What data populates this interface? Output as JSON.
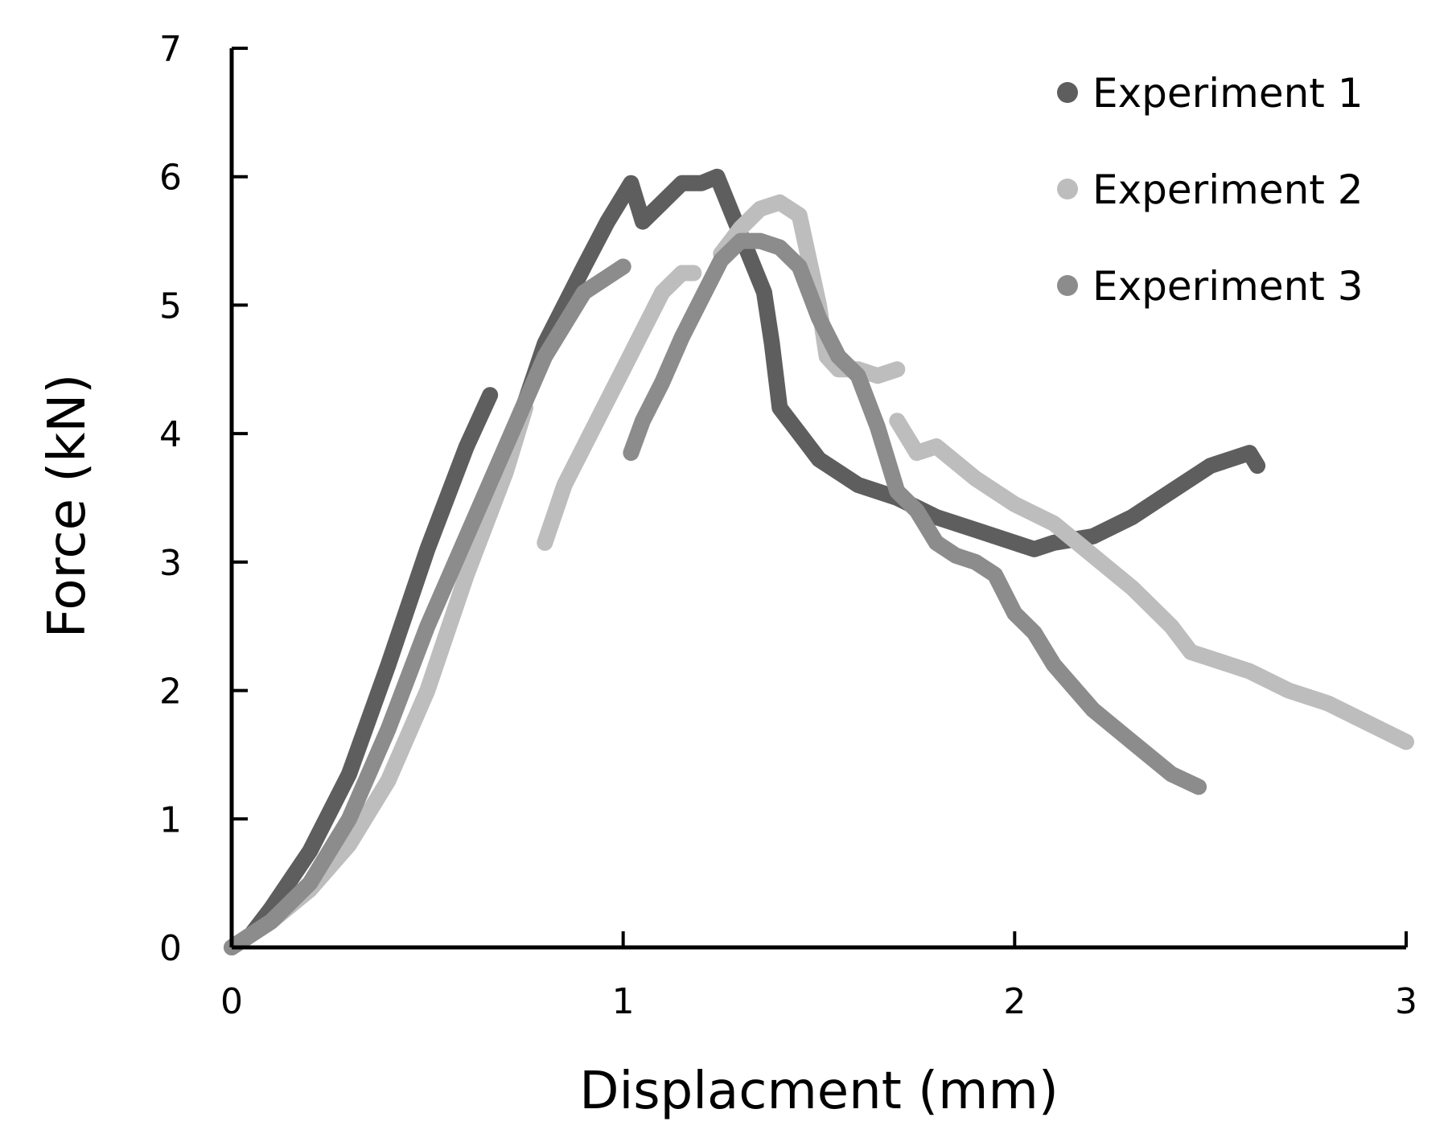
{
  "chart_data": {
    "type": "scatter",
    "title": "",
    "xlabel": "Displacment (mm)",
    "ylabel": "Force (kN)",
    "xlim": [
      0,
      3
    ],
    "ylim": [
      0,
      7
    ],
    "xticks": [
      0,
      1,
      2,
      3
    ],
    "yticks": [
      0,
      1,
      2,
      3,
      4,
      5,
      6,
      7
    ],
    "xtick_labels": [
      "0",
      "1",
      "2",
      "3"
    ],
    "ytick_labels": [
      "0",
      "1",
      "2",
      "3",
      "4",
      "5",
      "6",
      "7"
    ],
    "grid": false,
    "legend_position": "top-right",
    "series": [
      {
        "name": "Experiment 1",
        "color": "#5e5e5e",
        "segments": [
          [
            [
              0,
              0
            ],
            [
              0.05,
              0.1
            ],
            [
              0.1,
              0.3
            ],
            [
              0.2,
              0.75
            ],
            [
              0.3,
              1.35
            ],
            [
              0.4,
              2.2
            ],
            [
              0.5,
              3.1
            ],
            [
              0.6,
              3.9
            ],
            [
              0.66,
              4.3
            ]
          ],
          [
            [
              0.66,
              3.4
            ],
            [
              0.7,
              3.8
            ],
            [
              0.8,
              4.7
            ],
            [
              0.9,
              5.3
            ],
            [
              0.96,
              5.65
            ],
            [
              1.0,
              5.85
            ],
            [
              1.02,
              5.95
            ],
            [
              1.05,
              5.65
            ],
            [
              1.1,
              5.8
            ],
            [
              1.15,
              5.95
            ],
            [
              1.2,
              5.95
            ],
            [
              1.24,
              6.0
            ],
            [
              1.28,
              5.7
            ],
            [
              1.32,
              5.4
            ],
            [
              1.36,
              5.1
            ],
            [
              1.38,
              4.7
            ],
            [
              1.4,
              4.2
            ],
            [
              1.45,
              4.0
            ],
            [
              1.5,
              3.8
            ],
            [
              1.6,
              3.6
            ],
            [
              1.7,
              3.5
            ],
            [
              1.8,
              3.35
            ],
            [
              1.9,
              3.25
            ],
            [
              2.0,
              3.15
            ],
            [
              2.05,
              3.1
            ],
            [
              2.1,
              3.15
            ],
            [
              2.2,
              3.2
            ],
            [
              2.3,
              3.35
            ],
            [
              2.4,
              3.55
            ],
            [
              2.5,
              3.75
            ],
            [
              2.6,
              3.85
            ],
            [
              2.62,
              3.75
            ]
          ]
        ]
      },
      {
        "name": "Experiment 2",
        "color": "#bdbdbd",
        "segments": [
          [
            [
              0,
              0
            ],
            [
              0.1,
              0.2
            ],
            [
              0.2,
              0.45
            ],
            [
              0.3,
              0.8
            ],
            [
              0.4,
              1.3
            ],
            [
              0.5,
              2.0
            ],
            [
              0.6,
              2.9
            ],
            [
              0.7,
              3.7
            ],
            [
              0.75,
              4.2
            ]
          ],
          [
            [
              0.8,
              3.15
            ],
            [
              0.85,
              3.6
            ],
            [
              0.9,
              3.9
            ],
            [
              0.95,
              4.2
            ],
            [
              1.0,
              4.5
            ],
            [
              1.05,
              4.8
            ],
            [
              1.1,
              5.1
            ],
            [
              1.15,
              5.25
            ],
            [
              1.18,
              5.25
            ]
          ],
          [
            [
              1.25,
              5.4
            ],
            [
              1.3,
              5.6
            ],
            [
              1.35,
              5.75
            ],
            [
              1.4,
              5.8
            ],
            [
              1.45,
              5.7
            ],
            [
              1.5,
              5.0
            ],
            [
              1.52,
              4.6
            ],
            [
              1.55,
              4.5
            ],
            [
              1.6,
              4.5
            ],
            [
              1.65,
              4.45
            ],
            [
              1.7,
              4.5
            ]
          ],
          [
            [
              1.7,
              4.1
            ],
            [
              1.75,
              3.85
            ],
            [
              1.8,
              3.9
            ],
            [
              1.9,
              3.65
            ],
            [
              2.0,
              3.45
            ],
            [
              2.1,
              3.3
            ],
            [
              2.2,
              3.05
            ],
            [
              2.3,
              2.8
            ],
            [
              2.4,
              2.5
            ],
            [
              2.45,
              2.3
            ],
            [
              2.6,
              2.15
            ],
            [
              2.7,
              2.0
            ],
            [
              2.8,
              1.9
            ],
            [
              2.9,
              1.75
            ],
            [
              3.0,
              1.6
            ]
          ]
        ]
      },
      {
        "name": "Experiment 3",
        "color": "#8c8c8c",
        "segments": [
          [
            [
              0,
              0
            ],
            [
              0.1,
              0.2
            ],
            [
              0.2,
              0.5
            ],
            [
              0.3,
              1.0
            ],
            [
              0.4,
              1.7
            ],
            [
              0.5,
              2.5
            ],
            [
              0.6,
              3.2
            ],
            [
              0.7,
              3.9
            ],
            [
              0.8,
              4.6
            ],
            [
              0.9,
              5.1
            ],
            [
              1.0,
              5.3
            ]
          ],
          [
            [
              1.02,
              3.85
            ],
            [
              1.05,
              4.1
            ],
            [
              1.1,
              4.4
            ],
            [
              1.15,
              4.75
            ],
            [
              1.2,
              5.05
            ],
            [
              1.25,
              5.35
            ],
            [
              1.3,
              5.5
            ],
            [
              1.35,
              5.5
            ],
            [
              1.4,
              5.45
            ],
            [
              1.45,
              5.3
            ],
            [
              1.5,
              4.9
            ],
            [
              1.55,
              4.6
            ],
            [
              1.6,
              4.45
            ],
            [
              1.65,
              4.05
            ],
            [
              1.7,
              3.55
            ],
            [
              1.75,
              3.4
            ],
            [
              1.8,
              3.15
            ],
            [
              1.85,
              3.05
            ],
            [
              1.9,
              3.0
            ],
            [
              1.95,
              2.9
            ],
            [
              2.0,
              2.6
            ],
            [
              2.05,
              2.45
            ],
            [
              2.1,
              2.2
            ],
            [
              2.2,
              1.85
            ],
            [
              2.3,
              1.6
            ],
            [
              2.4,
              1.35
            ],
            [
              2.47,
              1.25
            ]
          ]
        ]
      }
    ]
  }
}
